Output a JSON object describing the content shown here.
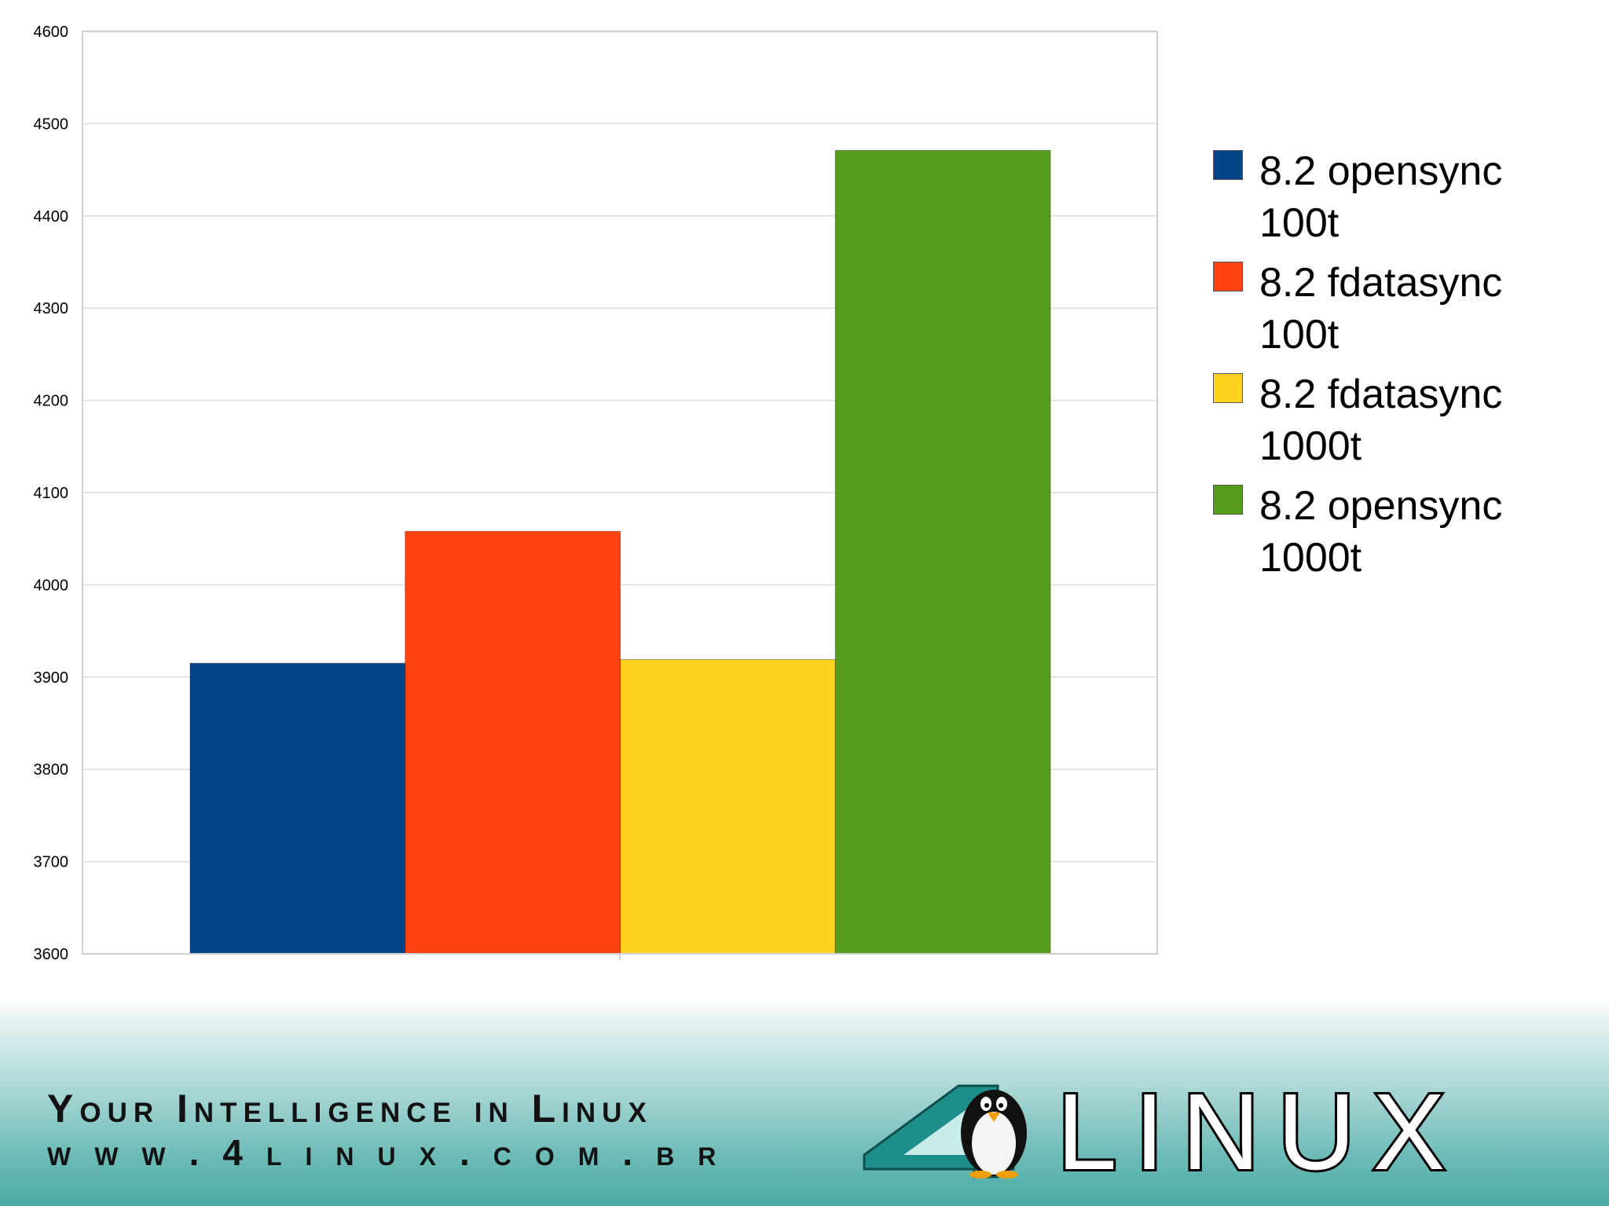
{
  "chart_data": {
    "type": "bar",
    "categories": [
      ""
    ],
    "series": [
      {
        "name": "8.2 opensync 100t",
        "values": [
          3915
        ],
        "color": "#034488"
      },
      {
        "name": "8.2 fdatasync 100t",
        "values": [
          4058
        ],
        "color": "#ff4210"
      },
      {
        "name": "8.2 fdatasync 1000t",
        "values": [
          3919
        ],
        "color": "#fdd320"
      },
      {
        "name": "8.2 opensync 1000t",
        "values": [
          4471
        ],
        "color": "#579d1c"
      }
    ],
    "ylim": [
      3600,
      4600
    ],
    "yticks": [
      "3600",
      "3700",
      "3800",
      "3900",
      "4000",
      "4100",
      "4200",
      "4300",
      "4400",
      "4500",
      "4600"
    ],
    "title": "",
    "xlabel": "",
    "ylabel": "",
    "grid": true,
    "legend_position": "right"
  },
  "footer": {
    "tagline": "Your Intelligence in Linux",
    "website": "www.4linux.com.br",
    "logo_text": "LINUX",
    "logo_number": "4",
    "colors": {
      "teal": "#4aa9a4",
      "logo_teal": "#1e8e8a"
    }
  }
}
